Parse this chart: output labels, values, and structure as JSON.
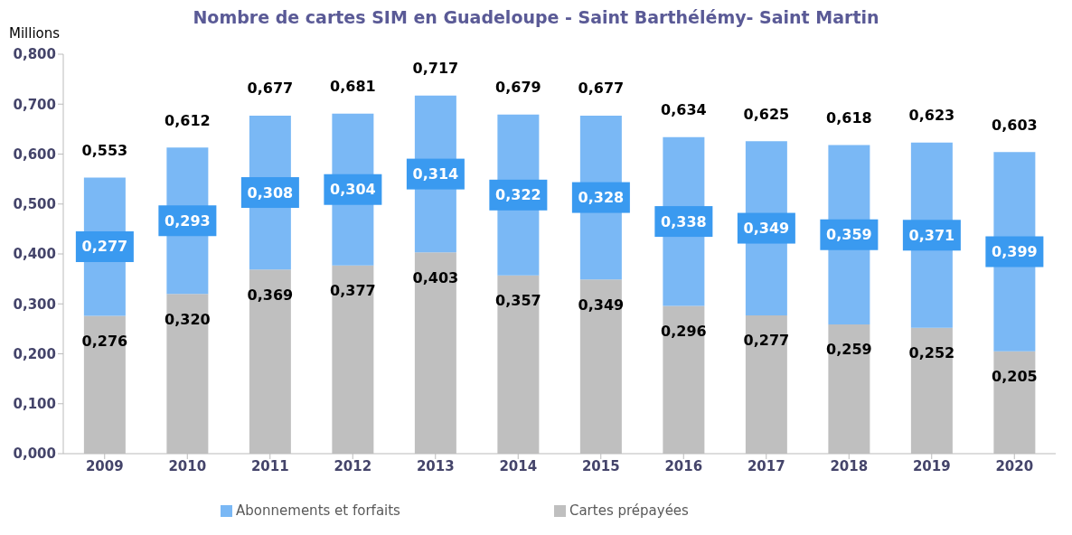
{
  "chart_data": {
    "type": "bar",
    "title": "Nombre de cartes SIM en Guadeloupe - Saint Barthélémy- Saint Martin",
    "ylabel": "Millions",
    "categories": [
      "2009",
      "2010",
      "2011",
      "2012",
      "2013",
      "2014",
      "2015",
      "2016",
      "2017",
      "2018",
      "2019",
      "2020"
    ],
    "stacked": true,
    "series": [
      {
        "name": "Cartes prépayées",
        "color": "#bfbfbf",
        "values": [
          0.276,
          0.32,
          0.369,
          0.377,
          0.403,
          0.357,
          0.349,
          0.296,
          0.277,
          0.259,
          0.252,
          0.205
        ],
        "value_labels": [
          "0,276",
          "0,320",
          "0,369",
          "0,377",
          "0,403",
          "0,357",
          "0,349",
          "0,296",
          "0,277",
          "0,259",
          "0,252",
          "0,205"
        ]
      },
      {
        "name": "Abonnements et forfaits",
        "color": "#7ab8f5",
        "values": [
          0.277,
          0.293,
          0.308,
          0.304,
          0.314,
          0.322,
          0.328,
          0.338,
          0.349,
          0.359,
          0.371,
          0.399
        ],
        "value_labels": [
          "0,277",
          "0,293",
          "0,308",
          "0,304",
          "0,314",
          "0,322",
          "0,328",
          "0,338",
          "0,349",
          "0,359",
          "0,371",
          "0,399"
        ]
      }
    ],
    "totals": [
      "0,553",
      "0,612",
      "0,677",
      "0,681",
      "0,717",
      "0,679",
      "0,677",
      "0,634",
      "0,625",
      "0,618",
      "0,623",
      "0,603"
    ],
    "ylim": [
      0,
      0.8
    ],
    "yticks": [
      {
        "value": 0,
        "label": "0,000"
      },
      {
        "value": 0.1,
        "label": "0,100"
      },
      {
        "value": 0.2,
        "label": "0,200"
      },
      {
        "value": 0.3,
        "label": "0,300"
      },
      {
        "value": 0.4,
        "label": "0,400"
      },
      {
        "value": 0.5,
        "label": "0,500"
      },
      {
        "value": 0.6,
        "label": "0,600"
      },
      {
        "value": 0.7,
        "label": "0,700"
      },
      {
        "value": 0.8,
        "label": "0,800"
      }
    ],
    "grid": false,
    "legend": "bottom"
  }
}
